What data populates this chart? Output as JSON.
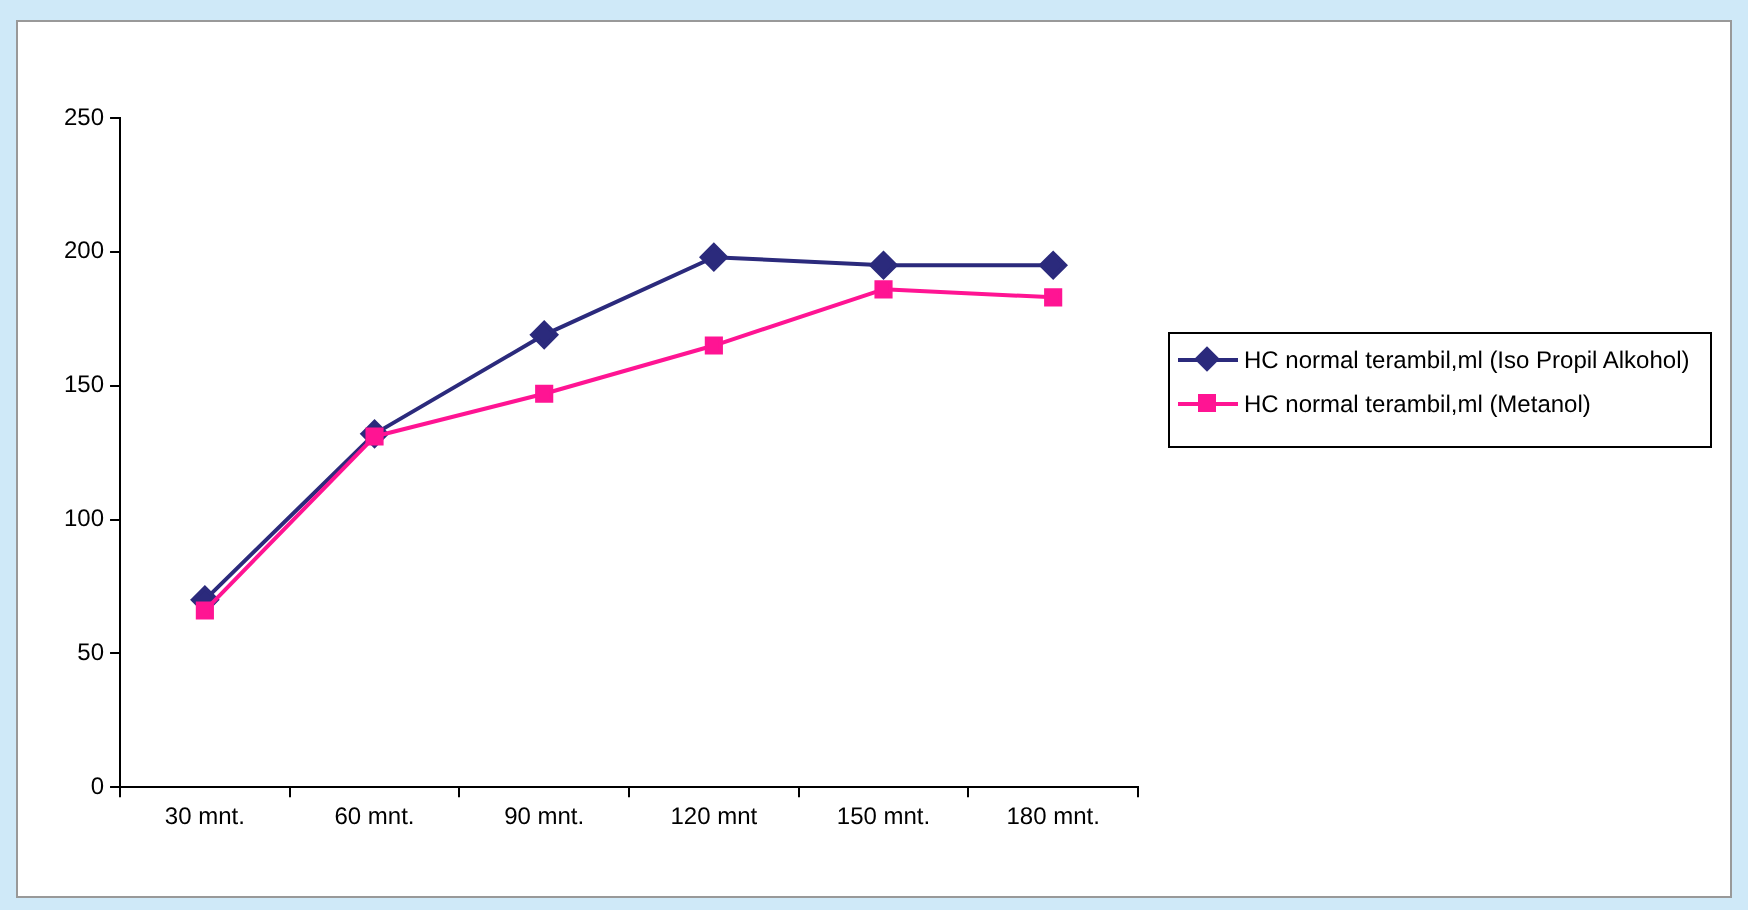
{
  "chart_data": {
    "type": "line",
    "categories": [
      "30 mnt.",
      "60 mnt.",
      "90 mnt.",
      "120 mnt",
      "150 mnt.",
      "180 mnt."
    ],
    "series": [
      {
        "name": "HC normal terambil,ml (Iso Propil Alkohol)",
        "color": "#2b2a7c",
        "marker": "diamond",
        "values": [
          70,
          132,
          169,
          198,
          195,
          195
        ]
      },
      {
        "name": "HC normal terambil,ml (Metanol)",
        "color": "#ff1493",
        "marker": "square",
        "values": [
          66,
          131,
          147,
          165,
          186,
          183
        ]
      }
    ],
    "ylim": [
      0,
      250
    ],
    "yticks": [
      0,
      50,
      100,
      150,
      200,
      250
    ],
    "grid": false,
    "legend": "right"
  }
}
